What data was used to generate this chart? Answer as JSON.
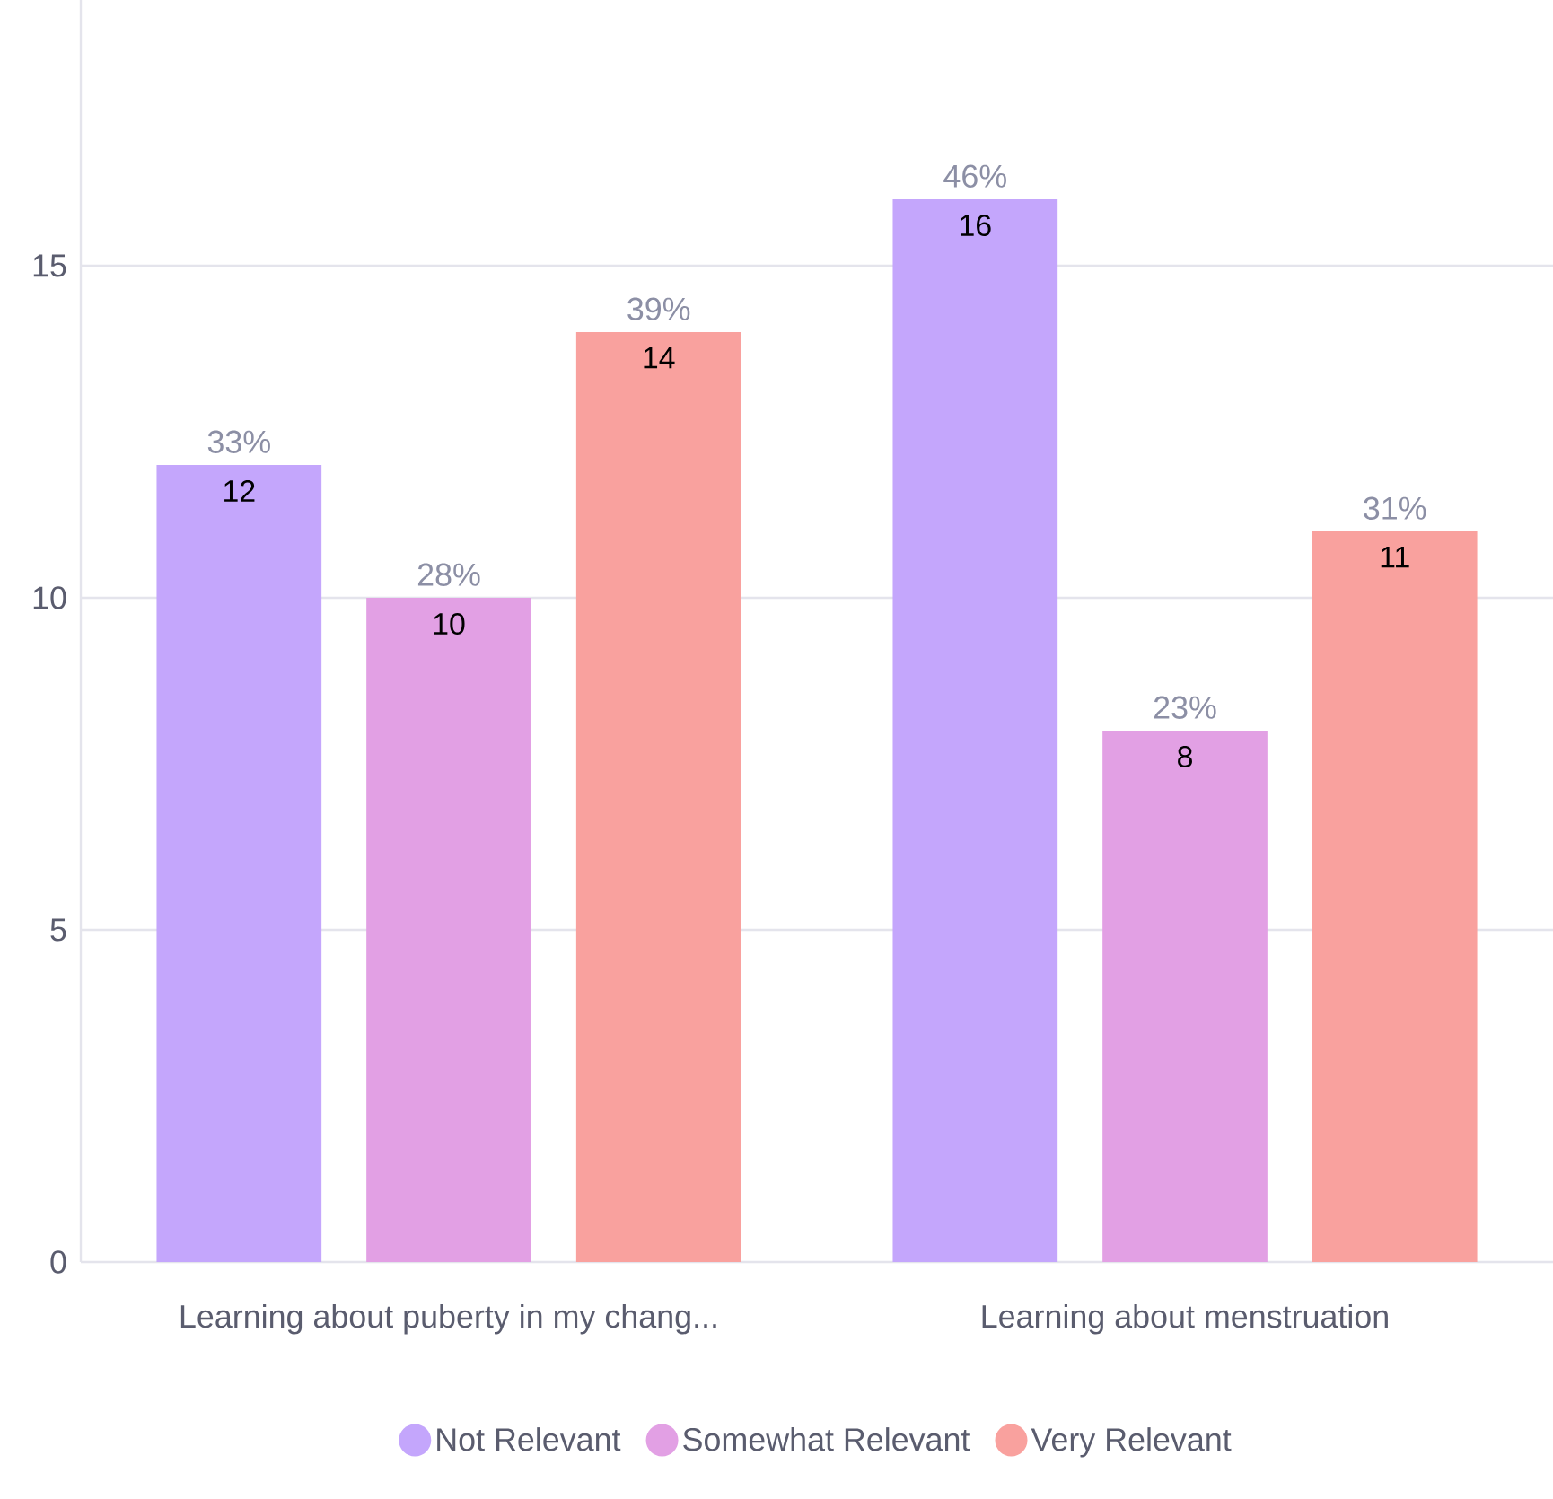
{
  "chart_data": {
    "type": "bar",
    "categories": [
      "Learning about puberty in my chang...",
      "Learning about menstruation"
    ],
    "series": [
      {
        "name": "Not Relevant",
        "color": "#c4a6fc",
        "values": [
          12,
          16
        ]
      },
      {
        "name": "Somewhat Relevant",
        "color": "#e2a0e4",
        "values": [
          10,
          8
        ]
      },
      {
        "name": "Very Relevant",
        "color": "#f9a19e",
        "values": [
          14,
          11
        ]
      }
    ],
    "annotations": [
      "33%",
      "28%",
      "39%",
      "46%",
      "23%",
      "31%"
    ],
    "ylim": [
      0,
      19
    ],
    "yticks": [
      0,
      5,
      10,
      15
    ],
    "grid": "y",
    "legend": "bottom",
    "data_labels": true
  }
}
